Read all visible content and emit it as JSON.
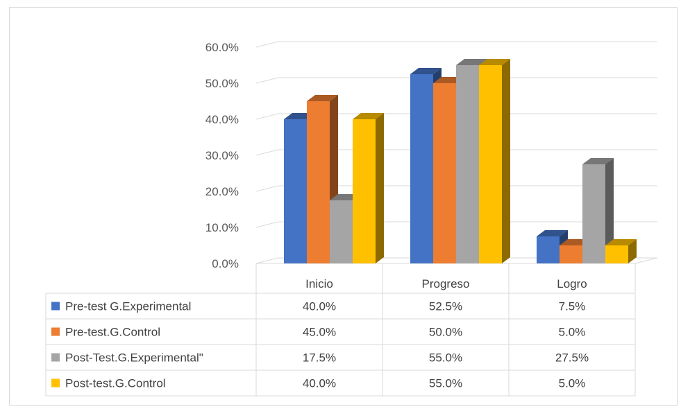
{
  "chart_data": {
    "type": "bar",
    "categories": [
      "Inicio",
      "Progreso",
      "Logro"
    ],
    "series": [
      {
        "name": "Pre-test G.Experimental",
        "values": [
          40.0,
          52.5,
          7.5
        ],
        "color": "#4472c4"
      },
      {
        "name": "Pre-test.G.Control",
        "values": [
          45.0,
          50.0,
          5.0
        ],
        "color": "#ed7d31"
      },
      {
        "name": "Post-Test.G.Experimental\"",
        "values": [
          17.5,
          55.0,
          27.5
        ],
        "color": "#a5a5a5"
      },
      {
        "name": "Post-test.G.Control",
        "values": [
          40.0,
          55.0,
          5.0
        ],
        "color": "#ffc000"
      }
    ],
    "table_values": [
      [
        "40.0%",
        "52.5%",
        "7.5%"
      ],
      [
        "45.0%",
        "50.0%",
        "5.0%"
      ],
      [
        "17.5%",
        "55.0%",
        "27.5%"
      ],
      [
        "40.0%",
        "55.0%",
        "5.0%"
      ]
    ],
    "y_ticks": [
      "0.0%",
      "10.0%",
      "20.0%",
      "30.0%",
      "40.0%",
      "50.0%",
      "60.0%"
    ],
    "ylim": [
      0,
      60
    ],
    "legend": "data-table",
    "grid": true,
    "style": "3d-column"
  }
}
